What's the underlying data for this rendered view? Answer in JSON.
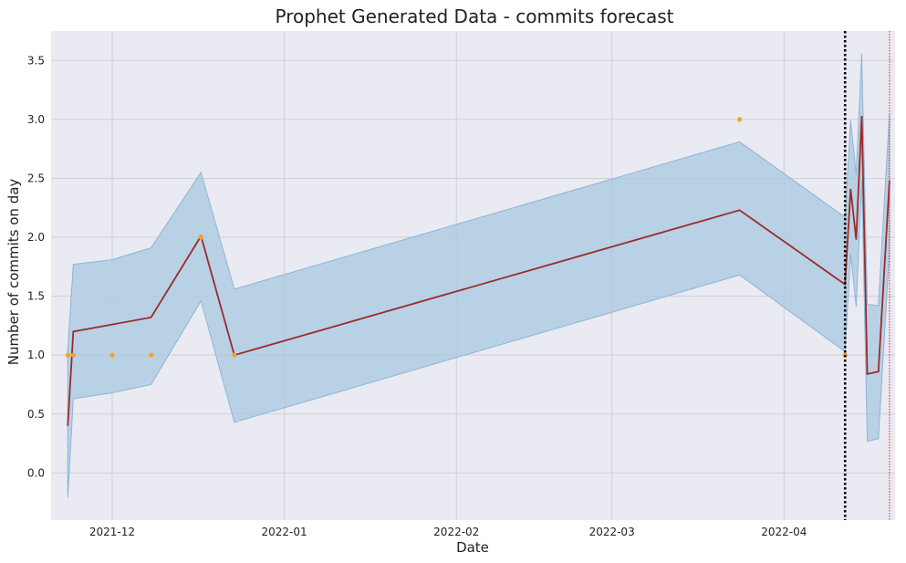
{
  "chart_data": {
    "type": "line",
    "title": "Prophet Generated Data - commits forecast",
    "xlabel": "Date",
    "ylabel": "Number of commits on day",
    "x_type": "date",
    "xlim": [
      "2021-11-20",
      "2022-04-21"
    ],
    "ylim": [
      -0.4,
      3.75
    ],
    "x_ticks": [
      {
        "value": "2021-12-01",
        "label": "2021-12"
      },
      {
        "value": "2022-01-01",
        "label": "2022-01"
      },
      {
        "value": "2022-02-01",
        "label": "2022-02"
      },
      {
        "value": "2022-03-01",
        "label": "2022-03"
      },
      {
        "value": "2022-04-01",
        "label": "2022-04"
      }
    ],
    "y_ticks": [
      {
        "value": 0.0,
        "label": "0.0"
      },
      {
        "value": 0.5,
        "label": "0.5"
      },
      {
        "value": 1.0,
        "label": "1.0"
      },
      {
        "value": 1.5,
        "label": "1.5"
      },
      {
        "value": 2.0,
        "label": "2.0"
      },
      {
        "value": 2.5,
        "label": "2.5"
      },
      {
        "value": 3.0,
        "label": "3.0"
      },
      {
        "value": 3.5,
        "label": "3.5"
      }
    ],
    "grid": true,
    "legend": "none",
    "colors": {
      "plot_bg": "#eaeaf2",
      "grid": "#cfcfd6",
      "forecast_line": "#9b2a2a",
      "interval_fill": "#a8c8e0",
      "interval_edge": "#8db5d6",
      "observed_points": "#ff9f1c",
      "forecast_start_line": "#000000",
      "end_line": "#e02020"
    },
    "series": [
      {
        "kind": "observed",
        "points": [
          {
            "x": "2021-11-23",
            "y": 1
          },
          {
            "x": "2021-11-24",
            "y": 1
          },
          {
            "x": "2021-12-01",
            "y": 1
          },
          {
            "x": "2021-12-08",
            "y": 1
          },
          {
            "x": "2021-12-17",
            "y": 2
          },
          {
            "x": "2021-12-23",
            "y": 1
          },
          {
            "x": "2022-03-24",
            "y": 3
          },
          {
            "x": "2022-04-12",
            "y": 1
          }
        ]
      },
      {
        "kind": "forecast",
        "points": [
          {
            "x": "2021-11-23",
            "y": 0.4,
            "lower": -0.21,
            "upper": 1.05
          },
          {
            "x": "2021-11-24",
            "y": 1.2,
            "lower": 0.63,
            "upper": 1.77
          },
          {
            "x": "2021-12-01",
            "y": 1.26,
            "lower": 0.68,
            "upper": 1.81
          },
          {
            "x": "2021-12-08",
            "y": 1.32,
            "lower": 0.75,
            "upper": 1.91
          },
          {
            "x": "2021-12-17",
            "y": 2.01,
            "lower": 1.46,
            "upper": 2.55
          },
          {
            "x": "2021-12-23",
            "y": 1.0,
            "lower": 0.43,
            "upper": 1.56
          },
          {
            "x": "2022-03-24",
            "y": 2.23,
            "lower": 1.68,
            "upper": 2.81
          },
          {
            "x": "2022-04-12",
            "y": 1.6,
            "lower": 1.03,
            "upper": 2.17
          },
          {
            "x": "2022-04-13",
            "y": 2.41,
            "lower": 1.86,
            "upper": 2.99
          },
          {
            "x": "2022-04-14",
            "y": 1.98,
            "lower": 1.41,
            "upper": 2.53
          },
          {
            "x": "2022-04-15",
            "y": 3.03,
            "lower": 2.49,
            "upper": 3.56
          },
          {
            "x": "2022-04-16",
            "y": 0.84,
            "lower": 0.27,
            "upper": 1.43
          },
          {
            "x": "2022-04-18",
            "y": 0.86,
            "lower": 0.29,
            "upper": 1.42
          },
          {
            "x": "2022-04-20",
            "y": 2.48,
            "lower": 1.9,
            "upper": 3.05
          }
        ]
      }
    ],
    "vertical_lines": [
      {
        "x": "2022-04-12",
        "style": "dotted",
        "color": "#000000"
      },
      {
        "x": "2022-04-20",
        "style": "dotted",
        "color": "#e02020"
      }
    ]
  }
}
